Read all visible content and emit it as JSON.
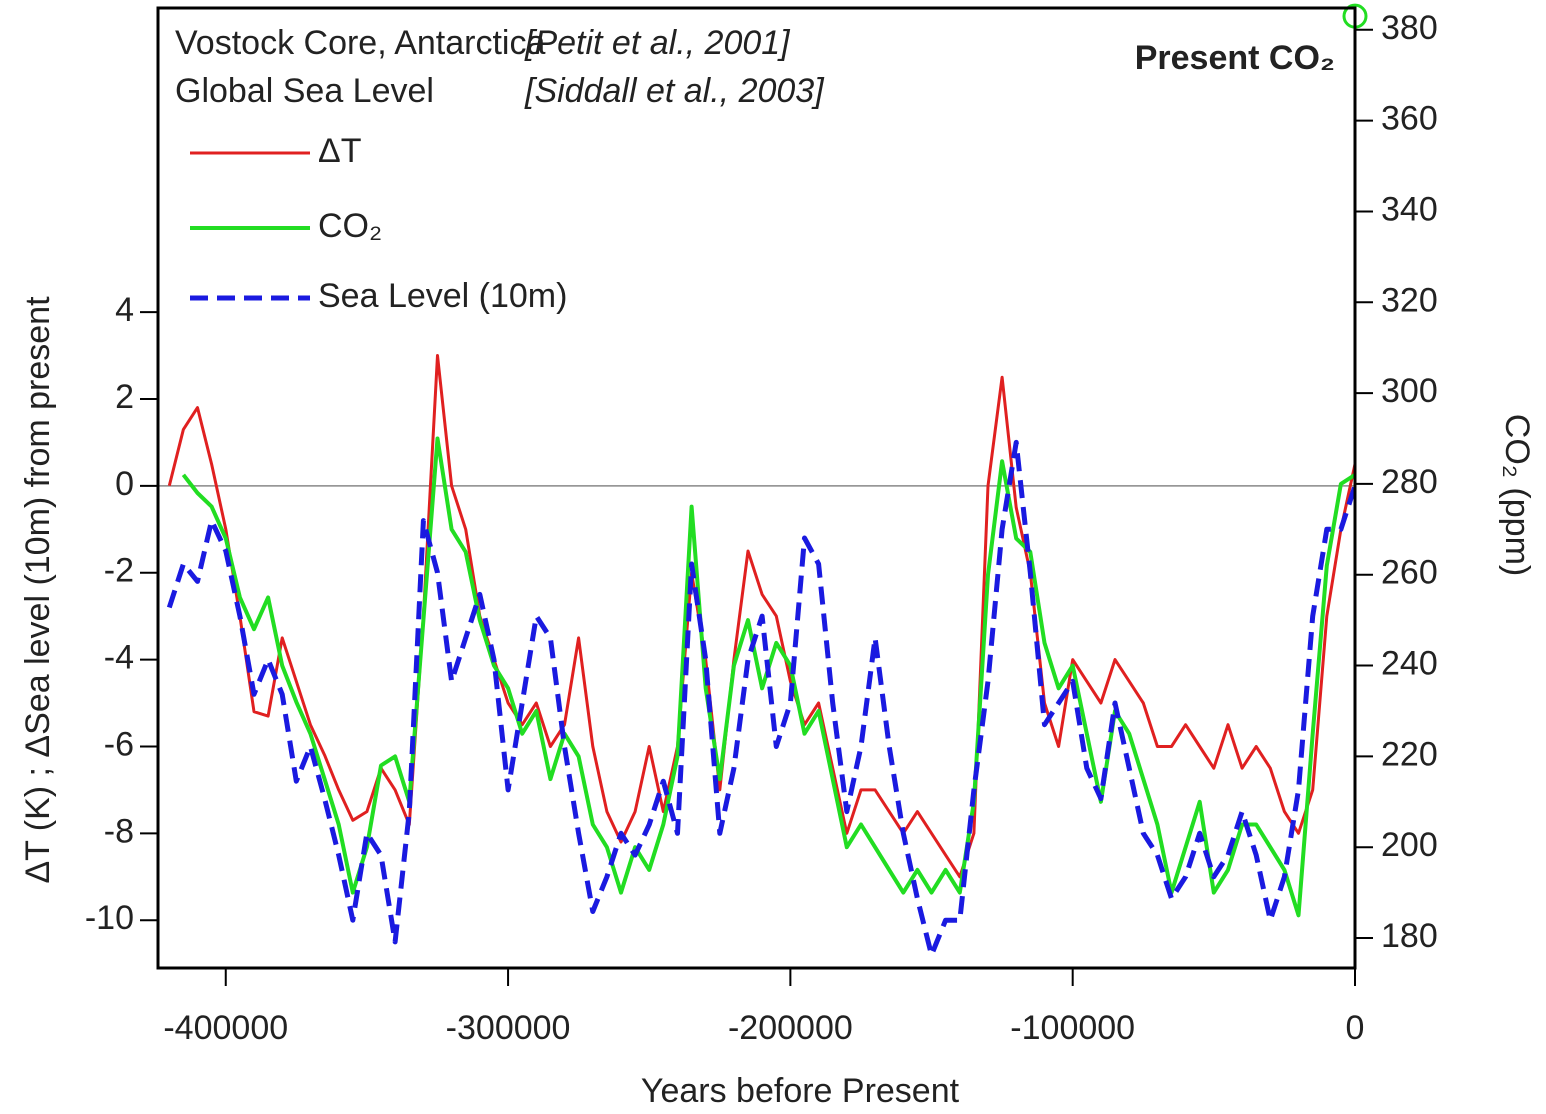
{
  "chart_data": {
    "type": "line",
    "annotations": [
      "Vostock Core, Antarctica",
      "[Petit et al., 2001]",
      "Global Sea Level",
      "[Siddall et al., 2003]"
    ],
    "xlabel": "Years before Present",
    "ylabel": "ΔT (K) ; ΔSea level (10m)  from present",
    "y2label": "CO₂ (ppm)",
    "xlim": [
      -424000,
      0
    ],
    "xticks": [
      -400000,
      -300000,
      -200000,
      -100000,
      0
    ],
    "ylim": [
      -11.1,
      11
    ],
    "yticks": [
      -10,
      -8,
      -6,
      -4,
      -2,
      0,
      2,
      4
    ],
    "y2lim": [
      173.4,
      384.8
    ],
    "y2ticks": [
      180,
      200,
      220,
      240,
      260,
      280,
      300,
      320,
      340,
      360,
      380
    ],
    "hline": 0,
    "legend": "upper left",
    "present_co2": {
      "label": "Present CO₂",
      "value": 383,
      "color": "#22dd22"
    },
    "x": [
      -420000,
      -415000,
      -410000,
      -405000,
      -400000,
      -395000,
      -390000,
      -385000,
      -380000,
      -375000,
      -370000,
      -365000,
      -360000,
      -355000,
      -350000,
      -345000,
      -340000,
      -335000,
      -330000,
      -325000,
      -320000,
      -315000,
      -310000,
      -305000,
      -300000,
      -295000,
      -290000,
      -285000,
      -280000,
      -275000,
      -270000,
      -265000,
      -260000,
      -255000,
      -250000,
      -245000,
      -240000,
      -235000,
      -230000,
      -225000,
      -220000,
      -215000,
      -210000,
      -205000,
      -200000,
      -195000,
      -190000,
      -185000,
      -180000,
      -175000,
      -170000,
      -165000,
      -160000,
      -155000,
      -150000,
      -145000,
      -140000,
      -135000,
      -130000,
      -125000,
      -120000,
      -115000,
      -110000,
      -105000,
      -100000,
      -95000,
      -90000,
      -85000,
      -80000,
      -75000,
      -70000,
      -65000,
      -60000,
      -55000,
      -50000,
      -45000,
      -40000,
      -35000,
      -30000,
      -25000,
      -20000,
      -15000,
      -10000,
      -5000,
      0
    ],
    "series": [
      {
        "name": "ΔT",
        "color": "#e02020",
        "dash": false,
        "width": 3,
        "values": [
          0.0,
          1.3,
          1.8,
          0.5,
          -1.0,
          -3.0,
          -5.2,
          -5.3,
          -3.5,
          -4.5,
          -5.5,
          -6.2,
          -7.0,
          -7.7,
          -7.5,
          -6.5,
          -7.0,
          -7.8,
          -3.0,
          3.0,
          0.0,
          -1.0,
          -3.0,
          -4.0,
          -5.0,
          -5.5,
          -5.0,
          -6.0,
          -5.5,
          -3.5,
          -6.0,
          -7.5,
          -8.2,
          -7.5,
          -6.0,
          -7.5,
          -6.0,
          -2.0,
          -4.0,
          -7.0,
          -4.0,
          -1.5,
          -2.5,
          -3.0,
          -4.5,
          -5.5,
          -5.0,
          -6.5,
          -8.0,
          -7.0,
          -7.0,
          -7.5,
          -8.0,
          -7.5,
          -8.0,
          -8.5,
          -9.0,
          -8.0,
          0.0,
          2.5,
          -0.5,
          -2.0,
          -5.0,
          -6.0,
          -4.0,
          -4.5,
          -5.0,
          -4.0,
          -4.5,
          -5.0,
          -6.0,
          -6.0,
          -5.5,
          -6.0,
          -6.5,
          -5.5,
          -6.5,
          -6.0,
          -6.5,
          -7.5,
          -8.0,
          -7.0,
          -3.0,
          -1.0,
          0.5
        ]
      },
      {
        "name": "CO₂",
        "color": "#22dd22",
        "dash": false,
        "width": 4,
        "axis": "y2",
        "values": [
          null,
          282,
          278,
          275,
          268,
          255,
          248,
          255,
          240,
          232,
          225,
          215,
          205,
          190,
          200,
          218,
          220,
          210,
          250,
          290,
          270,
          265,
          250,
          240,
          235,
          225,
          230,
          215,
          225,
          220,
          205,
          200,
          190,
          200,
          195,
          205,
          220,
          275,
          235,
          215,
          240,
          250,
          235,
          245,
          240,
          225,
          230,
          215,
          200,
          205,
          200,
          195,
          190,
          195,
          190,
          195,
          190,
          210,
          260,
          285,
          268,
          265,
          245,
          235,
          240,
          225,
          210,
          230,
          225,
          215,
          205,
          190,
          200,
          210,
          190,
          195,
          205,
          205,
          200,
          195,
          185,
          225,
          262,
          280,
          282
        ]
      },
      {
        "name": "Sea Level (10m)",
        "color": "#1a1ae0",
        "dash": true,
        "width": 5,
        "values": [
          -2.8,
          -1.8,
          -2.2,
          -0.8,
          -1.5,
          -3.0,
          -4.8,
          -4.0,
          -4.8,
          -6.8,
          -6.0,
          -7.2,
          -8.5,
          -10.0,
          -8.0,
          -8.5,
          -10.5,
          -7.5,
          -0.8,
          -2.0,
          -4.5,
          -3.5,
          -2.5,
          -4.0,
          -7.0,
          -5.0,
          -3.0,
          -3.5,
          -6.0,
          -8.0,
          -9.8,
          -9.0,
          -8.0,
          -8.5,
          -7.8,
          -6.8,
          -8.0,
          -1.8,
          -4.0,
          -8.0,
          -6.5,
          -4.0,
          -3.0,
          -6.0,
          -5.0,
          -1.2,
          -1.8,
          -5.0,
          -7.5,
          -6.0,
          -3.5,
          -6.0,
          -8.0,
          -9.5,
          -10.8,
          -10.0,
          -10.0,
          -7.0,
          -4.5,
          -1.0,
          1.0,
          -2.0,
          -5.5,
          -5.0,
          -4.5,
          -6.5,
          -7.2,
          -5.0,
          -6.5,
          -8.0,
          -8.5,
          -9.5,
          -9.0,
          -8.0,
          -9.0,
          -8.5,
          -7.5,
          -8.5,
          -10.0,
          -9.0,
          -7.0,
          -3.0,
          -1.0,
          -1.0,
          0.0
        ]
      }
    ]
  }
}
